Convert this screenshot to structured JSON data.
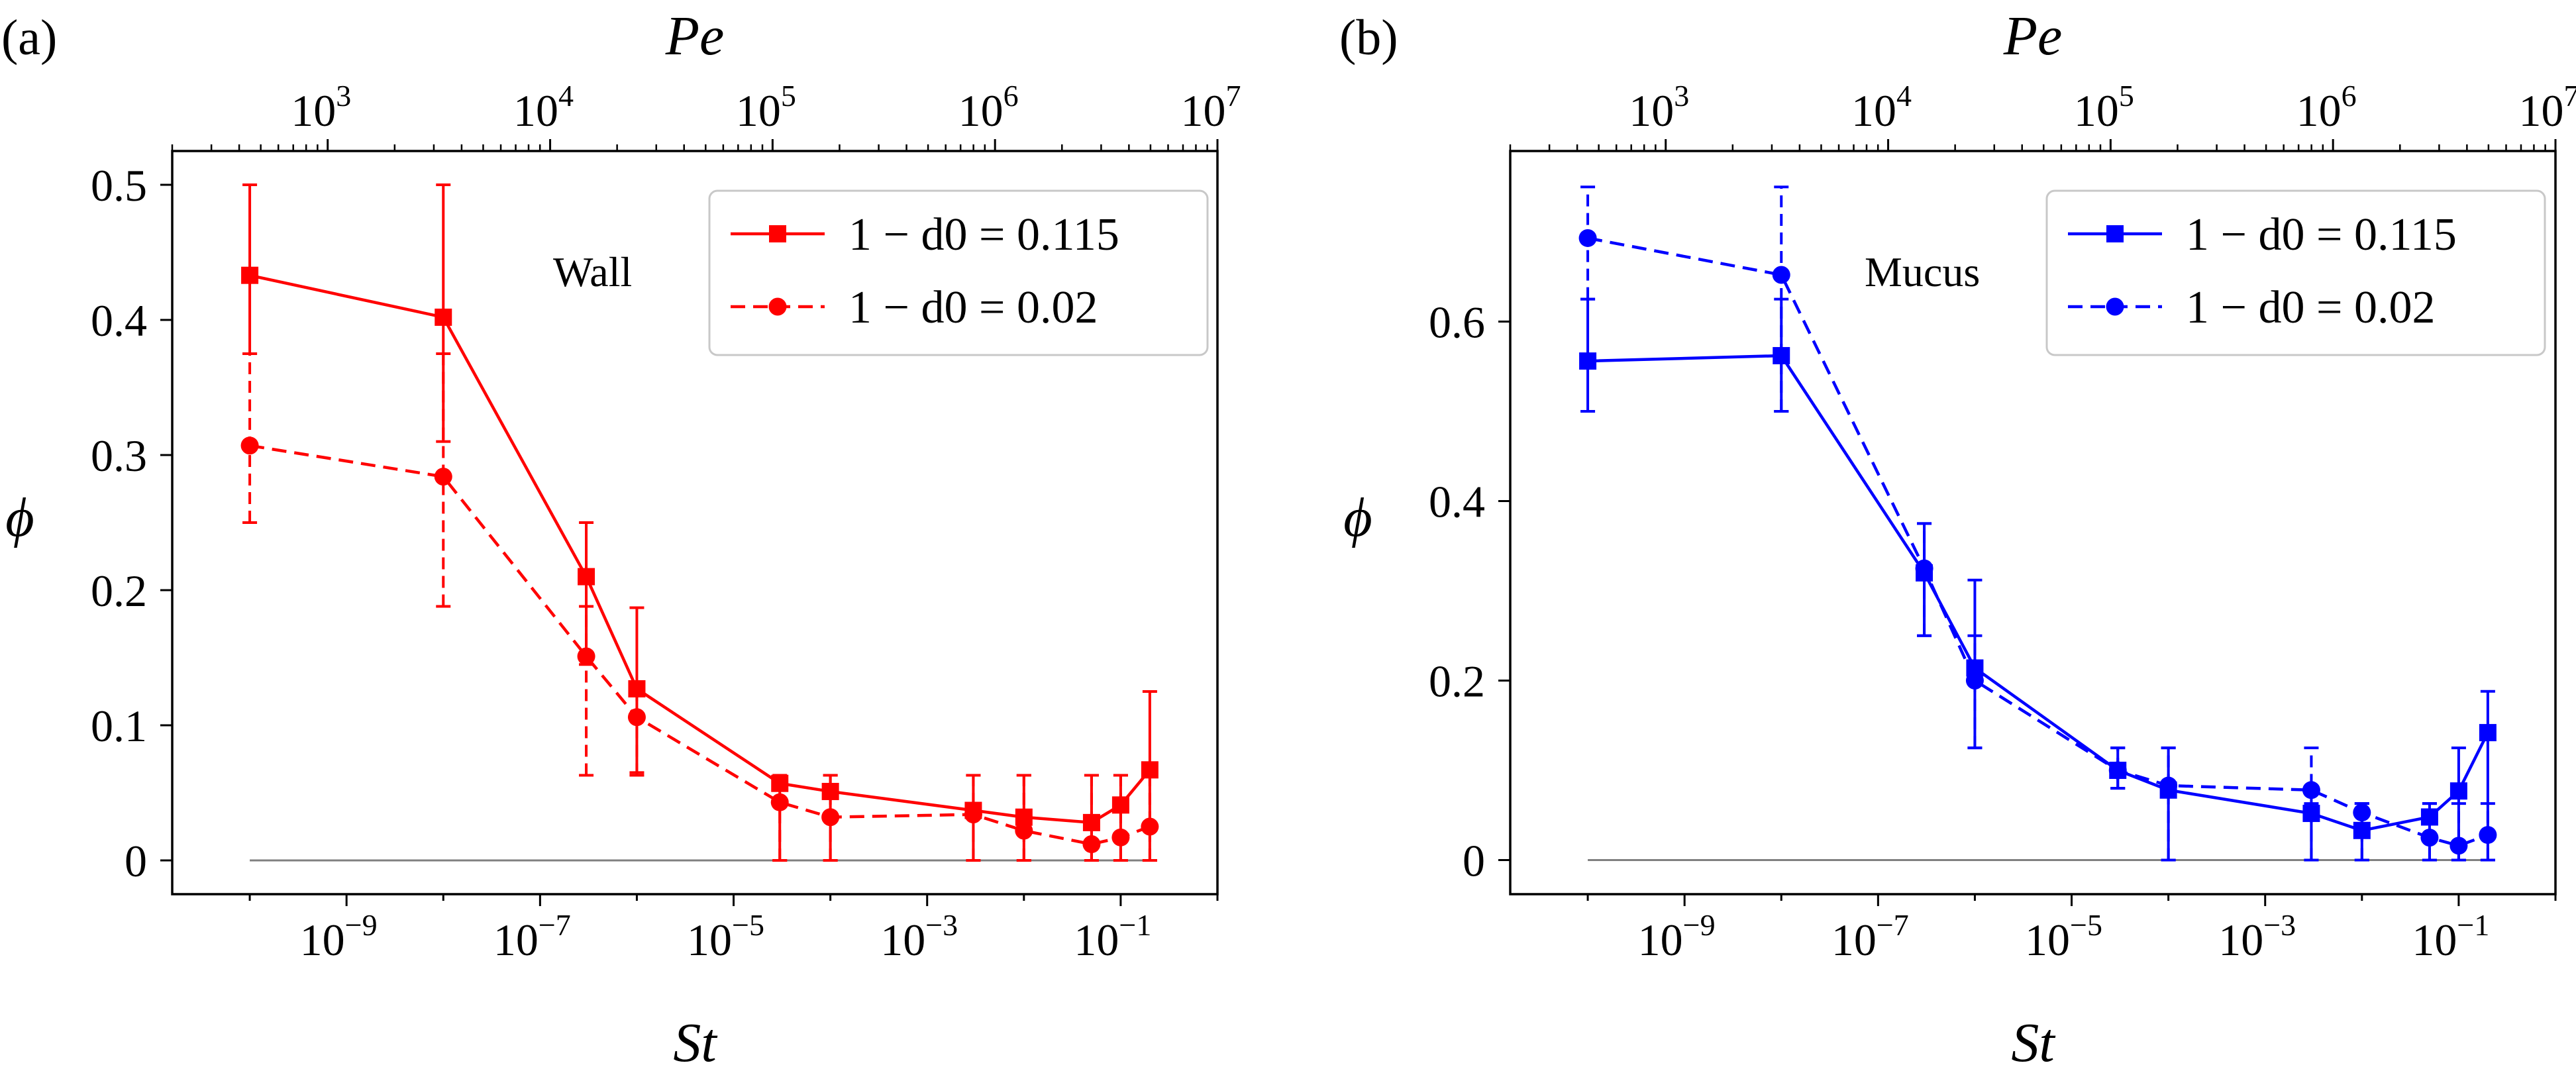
{
  "figure": {
    "panels": [
      {
        "panel_label": "(a)",
        "annotation": "Wall",
        "legend_entries": [
          "1 − d0 = 0.115",
          "1 − d0 = 0.02"
        ]
      },
      {
        "panel_label": "(b)",
        "annotation": "Mucus",
        "legend_entries": [
          "1 − d0 = 0.115",
          "1 − d0 = 0.02"
        ]
      }
    ]
  },
  "chart_data": [
    {
      "type": "line",
      "panel": "(a)",
      "annotation": "Wall",
      "xlabel": "St",
      "ylabel": "ϕ",
      "top_xlabel": "Pe",
      "xscale": "log",
      "xlim": [
        1.58e-11,
        1.0
      ],
      "ylim": [
        -0.025,
        0.525
      ],
      "x_ticks": [
        1e-09,
        1e-07,
        1e-05,
        0.001,
        0.1
      ],
      "x_tick_labels": [
        [
          "10",
          "−9"
        ],
        [
          "10",
          "−7"
        ],
        [
          "10",
          "−5"
        ],
        [
          "10",
          "−3"
        ],
        [
          "10",
          "−1"
        ]
      ],
      "y_ticks": [
        0,
        0.1,
        0.2,
        0.3,
        0.4,
        0.5
      ],
      "y_tick_labels": [
        "0",
        "0.1",
        "0.2",
        "0.3",
        "0.4",
        "0.5"
      ],
      "top_ticks": [
        1000.0,
        10000.0,
        100000.0,
        1000000.0,
        10000000.0
      ],
      "top_tick_labels": [
        [
          "10",
          "3"
        ],
        [
          "10",
          "4"
        ],
        [
          "10",
          "5"
        ],
        [
          "10",
          "6"
        ],
        [
          "10",
          "7"
        ]
      ],
      "top_range": [
        200.0,
        10000000.0
      ],
      "reference_line_y": 0,
      "legend_position": "upper-right",
      "grid": false,
      "color": "#ff0000",
      "series": [
        {
          "name": "1 − d0 = 0.115",
          "linestyle": "solid",
          "marker": "square",
          "x": [
            1e-10,
            1e-08,
            3e-07,
            1e-06,
            3e-05,
            0.0001,
            0.003,
            0.01,
            0.05,
            0.1,
            0.2
          ],
          "y": [
            0.433,
            0.402,
            0.21,
            0.127,
            0.057,
            0.051,
            0.037,
            0.032,
            0.028,
            0.041,
            0.067
          ],
          "yerr_low": [
            0.375,
            0.31,
            0.145,
            0.065,
            0.0,
            0.0,
            0.0,
            0.0,
            0.0,
            0.0,
            0.0
          ],
          "yerr_high": [
            0.5,
            0.5,
            0.25,
            0.187,
            0.057,
            0.063,
            0.063,
            0.063,
            0.063,
            0.063,
            0.125
          ]
        },
        {
          "name": "1 − d0 = 0.02",
          "linestyle": "dashed",
          "marker": "circle",
          "x": [
            1e-10,
            1e-08,
            3e-07,
            1e-06,
            3e-05,
            0.0001,
            0.003,
            0.01,
            0.05,
            0.1,
            0.2
          ],
          "y": [
            0.307,
            0.284,
            0.151,
            0.106,
            0.043,
            0.032,
            0.034,
            0.022,
            0.012,
            0.017,
            0.025
          ],
          "yerr_low": [
            0.25,
            0.188,
            0.063,
            0.063,
            0.0,
            0.0,
            0.0,
            0.0,
            0.0,
            0.0,
            0.0
          ],
          "yerr_high": [
            0.375,
            0.375,
            0.188,
            0.125,
            0.063,
            0.063,
            0.063,
            0.063,
            0.063,
            0.063,
            0.063
          ]
        }
      ]
    },
    {
      "type": "line",
      "panel": "(b)",
      "annotation": "Mucus",
      "xlabel": "St",
      "ylabel": "ϕ",
      "top_xlabel": "Pe",
      "xscale": "log",
      "xlim": [
        1.58e-11,
        1.0
      ],
      "ylim": [
        -0.038,
        0.79
      ],
      "x_ticks": [
        1e-09,
        1e-07,
        1e-05,
        0.001,
        0.1
      ],
      "x_tick_labels": [
        [
          "10",
          "−9"
        ],
        [
          "10",
          "−7"
        ],
        [
          "10",
          "−5"
        ],
        [
          "10",
          "−3"
        ],
        [
          "10",
          "−1"
        ]
      ],
      "y_ticks": [
        0,
        0.2,
        0.4,
        0.6
      ],
      "y_tick_labels": [
        "0",
        "0.2",
        "0.4",
        "0.6"
      ],
      "top_ticks": [
        1000.0,
        10000.0,
        100000.0,
        1000000.0,
        10000000.0
      ],
      "top_tick_labels": [
        [
          "10",
          "3"
        ],
        [
          "10",
          "4"
        ],
        [
          "10",
          "5"
        ],
        [
          "10",
          "6"
        ],
        [
          "10",
          "7"
        ]
      ],
      "top_range": [
        200.0,
        10000000.0
      ],
      "reference_line_y": 0,
      "legend_position": "upper-right",
      "grid": false,
      "color": "#0000ff",
      "series": [
        {
          "name": "1 − d0 = 0.115",
          "linestyle": "solid",
          "marker": "square",
          "x": [
            1e-10,
            1e-08,
            3e-07,
            1e-06,
            3e-05,
            0.0001,
            0.003,
            0.01,
            0.05,
            0.1,
            0.2
          ],
          "y": [
            0.556,
            0.562,
            0.32,
            0.214,
            0.1,
            0.078,
            0.052,
            0.033,
            0.048,
            0.077,
            0.142
          ],
          "yerr_low": [
            0.5,
            0.5,
            0.25,
            0.125,
            0.08,
            0.0,
            0.0,
            0.0,
            0.0,
            0.0,
            0.0
          ],
          "yerr_high": [
            0.625,
            0.625,
            0.375,
            0.312,
            0.125,
            0.125,
            0.063,
            0.063,
            0.063,
            0.125,
            0.188
          ]
        },
        {
          "name": "1 − d0 = 0.02",
          "linestyle": "dashed",
          "marker": "circle",
          "x": [
            1e-10,
            1e-08,
            3e-07,
            1e-06,
            3e-05,
            0.0001,
            0.003,
            0.01,
            0.05,
            0.1,
            0.2
          ],
          "y": [
            0.693,
            0.652,
            0.325,
            0.2,
            0.1,
            0.083,
            0.078,
            0.053,
            0.025,
            0.016,
            0.028
          ],
          "yerr_low": [
            0.625,
            0.5,
            0.25,
            0.125,
            0.08,
            0.0,
            0.0,
            0.0,
            0.0,
            0.0,
            0.0
          ],
          "yerr_high": [
            0.75,
            0.75,
            0.375,
            0.25,
            0.125,
            0.125,
            0.125,
            0.063,
            0.063,
            0.063,
            0.063
          ]
        }
      ]
    }
  ]
}
